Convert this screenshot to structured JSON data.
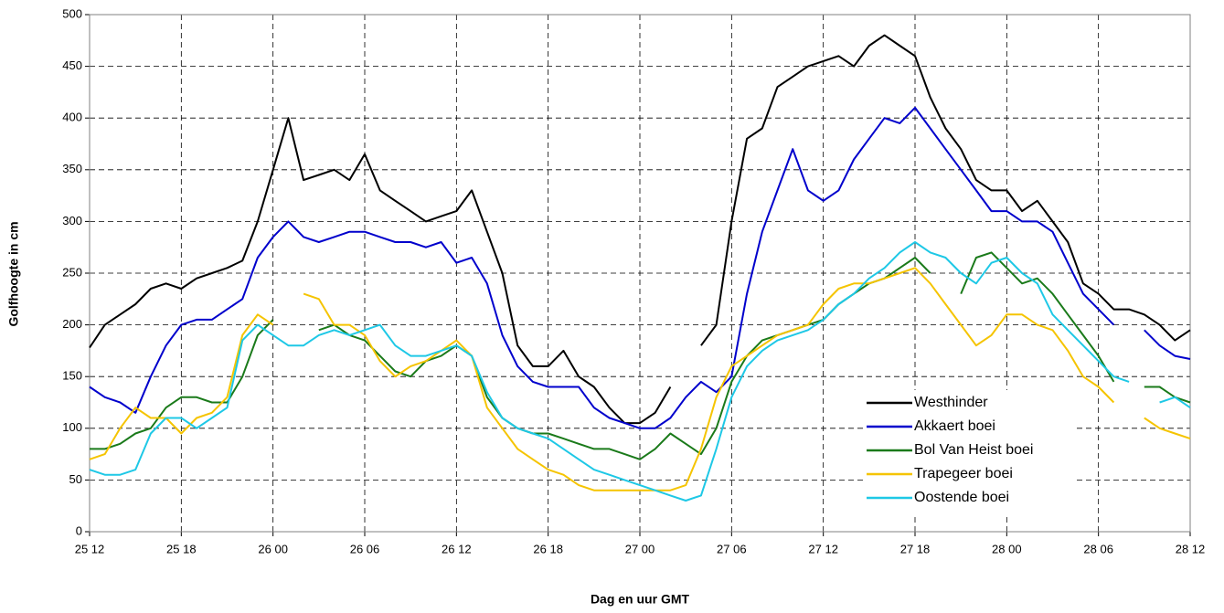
{
  "chart_data": {
    "type": "line",
    "x_label": "Dag en uur GMT",
    "y_label": "Golfhoogte in cm",
    "categories": [
      "25 12",
      null,
      null,
      null,
      null,
      null,
      "25 18",
      null,
      null,
      null,
      null,
      null,
      "26 00",
      null,
      null,
      null,
      null,
      null,
      "26 06",
      null,
      null,
      null,
      null,
      null,
      "26 12",
      null,
      null,
      null,
      null,
      null,
      "26 18",
      null,
      null,
      null,
      null,
      null,
      "27 00",
      null,
      null,
      null,
      null,
      null,
      "27 06",
      null,
      null,
      null,
      null,
      null,
      "27 12",
      null,
      null,
      null,
      null,
      null,
      "27 18",
      null,
      null,
      null,
      null,
      null,
      "28 00",
      null,
      null,
      null,
      null,
      null,
      "28 06",
      null,
      null,
      null,
      null,
      null,
      "28 12"
    ],
    "ylim": [
      0,
      500
    ],
    "yticks": [
      0,
      50,
      100,
      150,
      200,
      250,
      300,
      350,
      400,
      450,
      500
    ],
    "grid": true,
    "legend": "lower right",
    "series": [
      {
        "name": "Westhinder",
        "color": "#000000",
        "values": [
          178,
          200,
          210,
          220,
          235,
          240,
          235,
          245,
          250,
          255,
          262,
          300,
          350,
          400,
          340,
          345,
          350,
          340,
          365,
          330,
          320,
          310,
          300,
          305,
          310,
          330,
          290,
          250,
          180,
          160,
          160,
          175,
          150,
          140,
          120,
          105,
          105,
          115,
          140,
          null,
          180,
          200,
          300,
          380,
          390,
          430,
          440,
          450,
          455,
          460,
          450,
          470,
          480,
          470,
          460,
          420,
          390,
          370,
          340,
          330,
          330,
          310,
          320,
          300,
          280,
          240,
          230,
          215,
          215,
          210,
          200,
          185,
          195
        ]
      },
      {
        "name": "Akkaert boei",
        "color": "#0000cc",
        "values": [
          140,
          130,
          125,
          115,
          150,
          180,
          200,
          205,
          205,
          215,
          225,
          265,
          285,
          300,
          285,
          280,
          285,
          290,
          290,
          285,
          280,
          280,
          275,
          280,
          260,
          265,
          240,
          190,
          160,
          145,
          140,
          140,
          140,
          120,
          110,
          105,
          100,
          100,
          110,
          130,
          145,
          135,
          150,
          230,
          290,
          330,
          370,
          330,
          320,
          330,
          360,
          380,
          400,
          395,
          410,
          390,
          370,
          350,
          330,
          310,
          310,
          300,
          300,
          290,
          260,
          230,
          215,
          200,
          null,
          195,
          180,
          170,
          167
        ]
      },
      {
        "name": "Bol Van Heist boei",
        "color": "#1a7a1a",
        "values": [
          80,
          80,
          85,
          95,
          100,
          120,
          130,
          130,
          125,
          125,
          150,
          190,
          205,
          null,
          null,
          195,
          200,
          190,
          185,
          170,
          155,
          150,
          165,
          170,
          180,
          170,
          130,
          110,
          100,
          95,
          95,
          90,
          85,
          80,
          80,
          75,
          70,
          80,
          95,
          85,
          75,
          100,
          145,
          170,
          185,
          190,
          195,
          200,
          205,
          220,
          230,
          240,
          245,
          255,
          265,
          250,
          null,
          230,
          265,
          270,
          255,
          240,
          245,
          230,
          210,
          190,
          170,
          145,
          null,
          140,
          140,
          130,
          125
        ]
      },
      {
        "name": "Trapegeer boei",
        "color": "#f5c400",
        "values": [
          70,
          75,
          100,
          120,
          110,
          110,
          95,
          110,
          115,
          130,
          190,
          210,
          200,
          null,
          230,
          225,
          200,
          200,
          190,
          165,
          150,
          160,
          165,
          175,
          185,
          170,
          120,
          100,
          80,
          70,
          60,
          55,
          45,
          40,
          40,
          40,
          40,
          40,
          40,
          45,
          80,
          130,
          160,
          170,
          180,
          190,
          195,
          200,
          220,
          235,
          240,
          240,
          245,
          250,
          255,
          240,
          220,
          200,
          180,
          190,
          210,
          210,
          200,
          195,
          175,
          150,
          140,
          125,
          null,
          110,
          100,
          95,
          90
        ]
      },
      {
        "name": "Oostende boei",
        "color": "#1ec8e6",
        "values": [
          60,
          55,
          55,
          60,
          95,
          110,
          110,
          100,
          110,
          120,
          185,
          200,
          190,
          180,
          180,
          190,
          195,
          190,
          195,
          200,
          180,
          170,
          170,
          175,
          180,
          170,
          135,
          110,
          100,
          95,
          90,
          80,
          70,
          60,
          55,
          50,
          45,
          40,
          35,
          30,
          35,
          80,
          130,
          160,
          175,
          185,
          190,
          195,
          205,
          220,
          230,
          245,
          255,
          270,
          280,
          270,
          265,
          250,
          240,
          260,
          265,
          250,
          240,
          210,
          195,
          180,
          165,
          150,
          145,
          null,
          125,
          130,
          120
        ]
      }
    ]
  }
}
